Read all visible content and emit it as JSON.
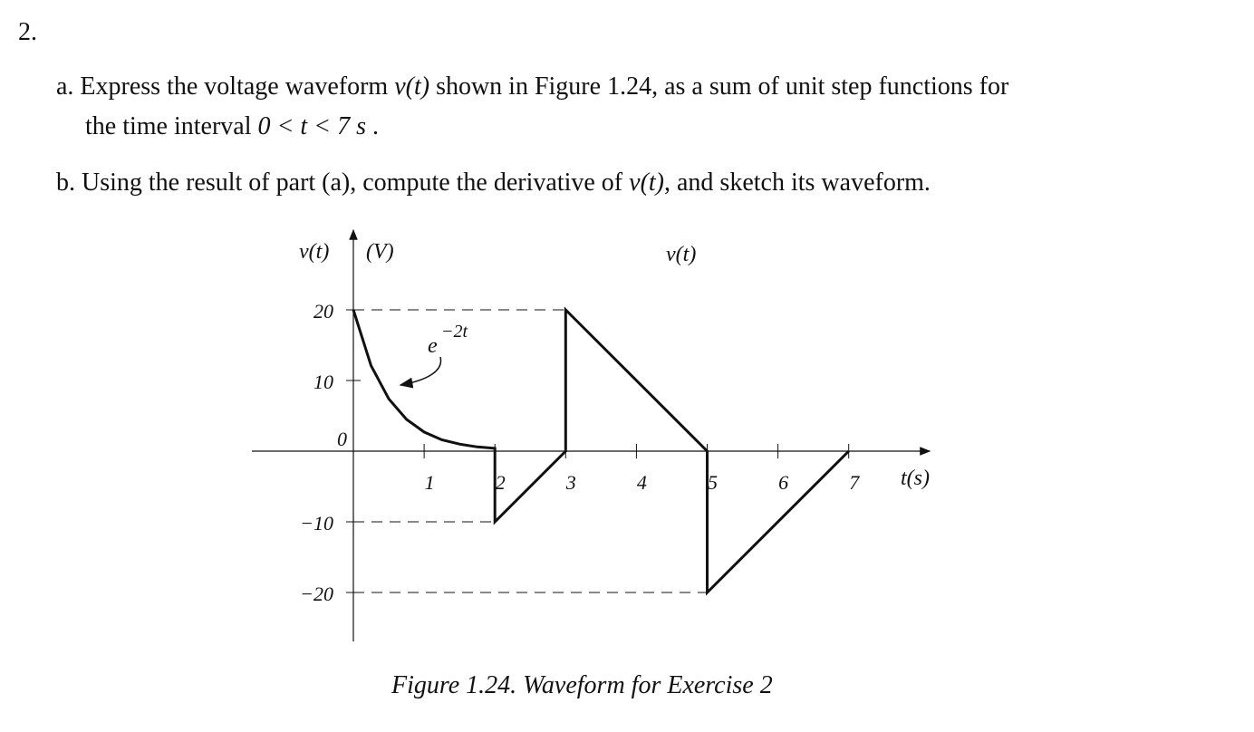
{
  "problem_number": "2.",
  "part_a": {
    "line1": [
      "a. Express the voltage waveform ",
      "v(t)",
      " shown in Figure 1.24, as a sum of unit step functions for"
    ],
    "line2": [
      "the time interval ",
      "0 < t < 7 s",
      " ."
    ]
  },
  "part_b": [
    "b. Using the result of part (a), compute the derivative of ",
    "v(t)",
    ", and sketch its waveform."
  ],
  "figure": {
    "y_label": "v(t)",
    "y_unit": "(V)",
    "curve_label": "v(t)",
    "annotation_base": "e",
    "annotation_exponent": "−2t",
    "x_label": "t(s)",
    "xticks": [
      1,
      2,
      3,
      4,
      5,
      6,
      7
    ],
    "yticks": [
      20,
      10,
      0,
      {
        "value": -10,
        "label": "−10"
      },
      {
        "value": -20,
        "label": "−20"
      }
    ],
    "waveform": {
      "t": [
        0,
        0.25,
        0.5,
        0.75,
        1,
        1.25,
        1.5,
        1.75,
        2,
        2,
        3,
        3,
        5,
        5,
        7
      ],
      "v": [
        20,
        12.1,
        7.4,
        4.5,
        2.7,
        1.6,
        1.0,
        0.6,
        0.4,
        -10,
        0,
        20,
        0,
        -20,
        0
      ]
    },
    "caption": "Figure 1.24.  Waveform for Exercise 2"
  }
}
